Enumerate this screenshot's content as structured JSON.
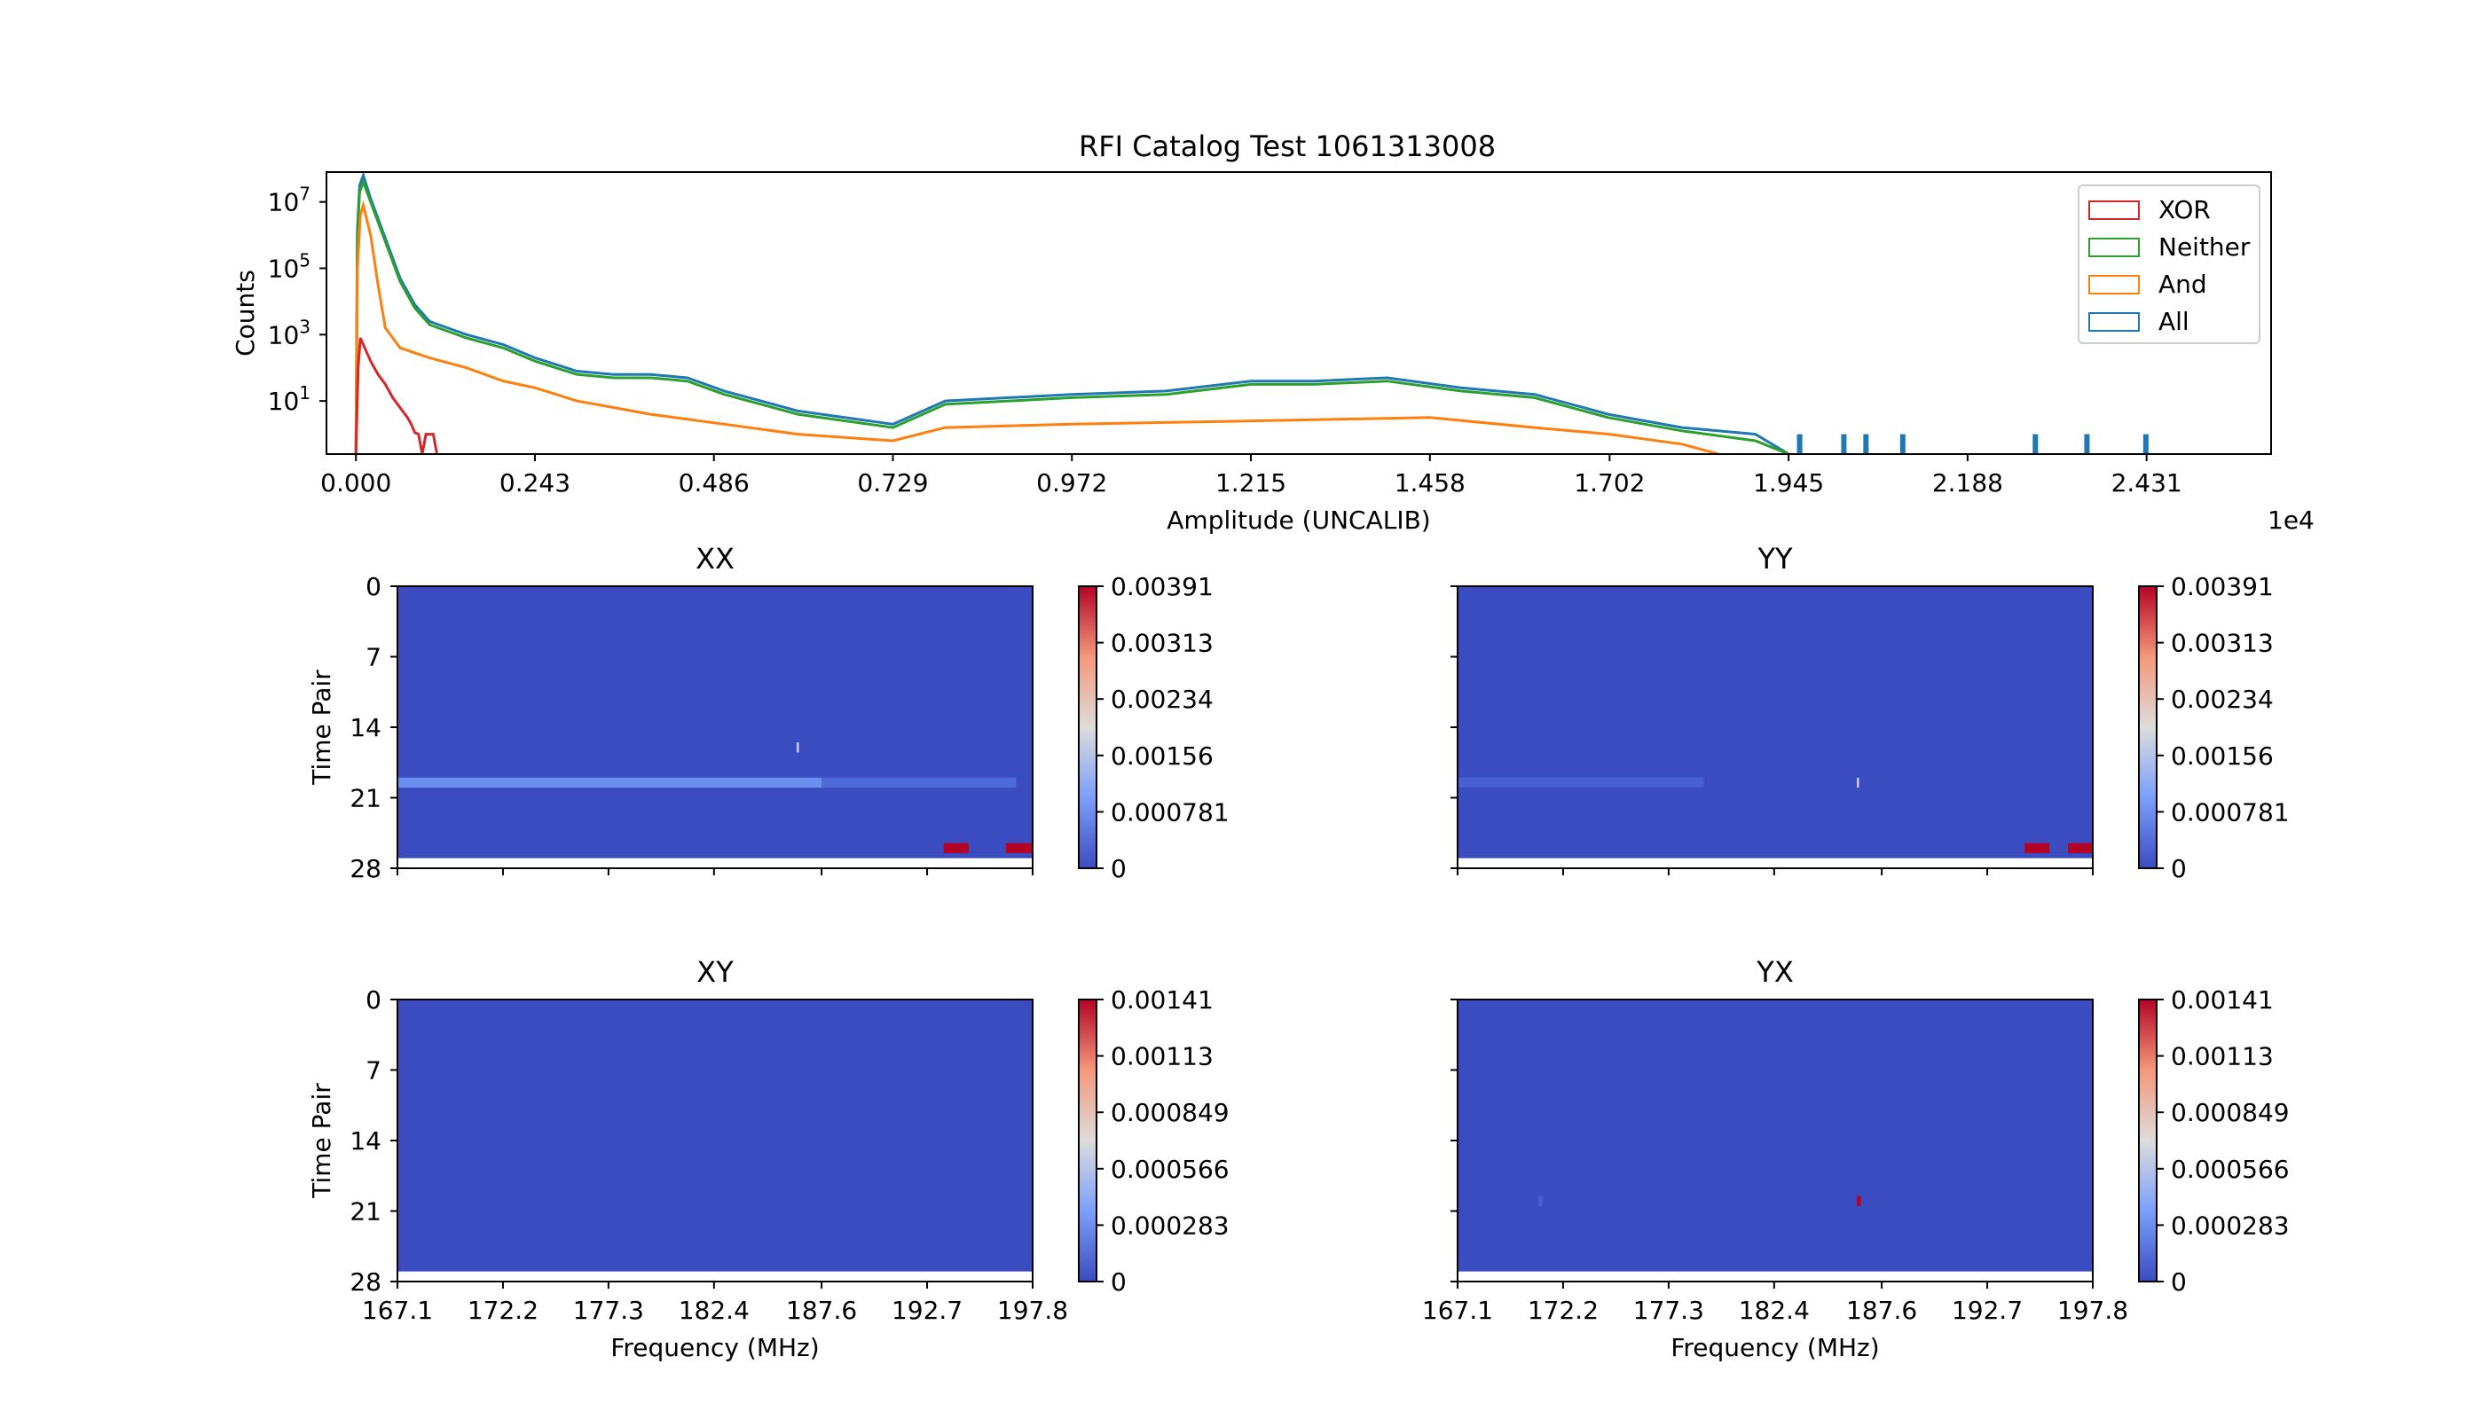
{
  "figure": {
    "title": "RFI Catalog Test 1061313008"
  },
  "chart_data": [
    {
      "type": "histogram",
      "title": "RFI Catalog Test 1061313008",
      "xlabel": "Amplitude (UNCALIB)",
      "ylabel": "Counts",
      "x_offset_label": "1e4",
      "x_scale_note": "×1e4",
      "xlim": [
        -0.04,
        2.6
      ],
      "xticks": [
        "0.000",
        "0.243",
        "0.486",
        "0.729",
        "0.972",
        "1.215",
        "1.458",
        "1.702",
        "1.945",
        "2.188",
        "2.431"
      ],
      "xtick_values": [
        0,
        0.243,
        0.486,
        0.729,
        0.972,
        1.215,
        1.458,
        1.702,
        1.945,
        2.188,
        2.431
      ],
      "yscale": "log",
      "ylim_log10": [
        -0.6,
        7.9
      ],
      "yticks": [
        {
          "base": "10",
          "exp": "7",
          "value": 7
        },
        {
          "base": "10",
          "exp": "5",
          "value": 5
        },
        {
          "base": "10",
          "exp": "3",
          "value": 3
        },
        {
          "base": "10",
          "exp": "1",
          "value": 1
        }
      ],
      "legend_position": "top-right",
      "series": [
        {
          "name": "XOR",
          "color": "#d62728",
          "points_log10": [
            [
              0.0,
              -0.6
            ],
            [
              0.003,
              2.0
            ],
            [
              0.006,
              2.9
            ],
            [
              0.012,
              2.6
            ],
            [
              0.02,
              2.2
            ],
            [
              0.03,
              1.8
            ],
            [
              0.04,
              1.5
            ],
            [
              0.05,
              1.1
            ],
            [
              0.06,
              0.8
            ],
            [
              0.07,
              0.5
            ],
            [
              0.075,
              0.3
            ],
            [
              0.08,
              0.05
            ],
            [
              0.085,
              0.0
            ],
            [
              0.09,
              -0.6
            ],
            [
              0.095,
              0.0
            ],
            [
              0.105,
              0.0
            ],
            [
              0.11,
              -0.6
            ]
          ]
        },
        {
          "name": "Neither",
          "color": "#2ca02c",
          "points_log10": [
            [
              0.0,
              -0.6
            ],
            [
              0.002,
              6.0
            ],
            [
              0.005,
              7.3
            ],
            [
              0.01,
              7.6
            ],
            [
              0.02,
              7.0
            ],
            [
              0.04,
              5.8
            ],
            [
              0.06,
              4.6
            ],
            [
              0.08,
              3.8
            ],
            [
              0.1,
              3.3
            ],
            [
              0.15,
              2.9
            ],
            [
              0.2,
              2.6
            ],
            [
              0.243,
              2.2
            ],
            [
              0.3,
              1.8
            ],
            [
              0.35,
              1.7
            ],
            [
              0.4,
              1.7
            ],
            [
              0.45,
              1.6
            ],
            [
              0.5,
              1.2
            ],
            [
              0.6,
              0.6
            ],
            [
              0.729,
              0.2
            ],
            [
              0.8,
              0.9
            ],
            [
              0.972,
              1.1
            ],
            [
              1.1,
              1.2
            ],
            [
              1.215,
              1.5
            ],
            [
              1.3,
              1.5
            ],
            [
              1.4,
              1.6
            ],
            [
              1.5,
              1.3
            ],
            [
              1.6,
              1.1
            ],
            [
              1.7,
              0.5
            ],
            [
              1.8,
              0.1
            ],
            [
              1.9,
              -0.2
            ],
            [
              1.945,
              -0.6
            ]
          ]
        },
        {
          "name": "And",
          "color": "#ff7f0e",
          "points_log10": [
            [
              0.0,
              -0.6
            ],
            [
              0.002,
              5.0
            ],
            [
              0.006,
              6.6
            ],
            [
              0.01,
              6.9
            ],
            [
              0.02,
              6.0
            ],
            [
              0.03,
              4.5
            ],
            [
              0.04,
              3.2
            ],
            [
              0.06,
              2.6
            ],
            [
              0.1,
              2.3
            ],
            [
              0.15,
              2.0
            ],
            [
              0.2,
              1.6
            ],
            [
              0.243,
              1.4
            ],
            [
              0.3,
              1.0
            ],
            [
              0.4,
              0.6
            ],
            [
              0.5,
              0.3
            ],
            [
              0.6,
              0.0
            ],
            [
              0.729,
              -0.2
            ],
            [
              0.8,
              0.2
            ],
            [
              0.972,
              0.3
            ],
            [
              1.215,
              0.4
            ],
            [
              1.458,
              0.5
            ],
            [
              1.6,
              0.2
            ],
            [
              1.702,
              0.0
            ],
            [
              1.8,
              -0.3
            ],
            [
              1.85,
              -0.6
            ]
          ]
        },
        {
          "name": "All",
          "color": "#1f77b4",
          "points_log10": [
            [
              0.0,
              -0.6
            ],
            [
              0.002,
              6.2
            ],
            [
              0.005,
              7.5
            ],
            [
              0.01,
              7.8
            ],
            [
              0.02,
              7.1
            ],
            [
              0.04,
              5.9
            ],
            [
              0.06,
              4.7
            ],
            [
              0.08,
              3.9
            ],
            [
              0.1,
              3.4
            ],
            [
              0.15,
              3.0
            ],
            [
              0.2,
              2.7
            ],
            [
              0.243,
              2.3
            ],
            [
              0.3,
              1.9
            ],
            [
              0.35,
              1.8
            ],
            [
              0.4,
              1.8
            ],
            [
              0.45,
              1.7
            ],
            [
              0.5,
              1.3
            ],
            [
              0.6,
              0.7
            ],
            [
              0.729,
              0.3
            ],
            [
              0.8,
              1.0
            ],
            [
              0.972,
              1.2
            ],
            [
              1.1,
              1.3
            ],
            [
              1.215,
              1.6
            ],
            [
              1.3,
              1.6
            ],
            [
              1.4,
              1.7
            ],
            [
              1.5,
              1.4
            ],
            [
              1.6,
              1.2
            ],
            [
              1.7,
              0.6
            ],
            [
              1.8,
              0.2
            ],
            [
              1.9,
              0.0
            ],
            [
              1.945,
              -0.6
            ]
          ]
        }
      ],
      "sparse_ticks": [
        1.96,
        2.02,
        2.05,
        2.1,
        2.28,
        2.35,
        2.43
      ],
      "sparse_tick_level_log10": 0.0
    },
    {
      "type": "heatmap",
      "title": "XX",
      "xlabel": "",
      "ylabel": "Time Pair",
      "yticks": [
        "0",
        "7",
        "14",
        "21",
        "28"
      ],
      "ytick_values": [
        0,
        7,
        14,
        21,
        28
      ],
      "ylim": [
        0,
        28
      ],
      "xticks": [
        "",
        "",
        "",
        "",
        "",
        "",
        ""
      ],
      "xlim": [
        167.1,
        197.8
      ],
      "xtick_values": [
        167.1,
        172.2,
        177.3,
        182.4,
        187.6,
        192.7,
        197.8
      ],
      "colorbar": {
        "ticks": [
          "0.00391",
          "0.00313",
          "0.00234",
          "0.00156",
          "0.000781",
          "0"
        ],
        "max": 0.00391
      },
      "background_color": "#3b4cc0",
      "hot_spots": [
        {
          "time": 19.5,
          "freq_start": 167.1,
          "freq_end": 187.6,
          "value": 0.0008,
          "color": "#6b8ff0"
        },
        {
          "time": 19.5,
          "freq_start": 187.6,
          "freq_end": 197.0,
          "value": 0.0003,
          "color": "#4f69d9"
        },
        {
          "time": 16,
          "freq_start": 186.4,
          "freq_end": 186.5,
          "value": 0.0015,
          "color": "#cdd9ec"
        },
        {
          "time": 26,
          "freq_start": 193.5,
          "freq_end": 194.7,
          "value": 0.00391,
          "color": "#b40426"
        },
        {
          "time": 26,
          "freq_start": 196.5,
          "freq_end": 197.8,
          "value": 0.00391,
          "color": "#b40426"
        }
      ],
      "data_rows": 27
    },
    {
      "type": "heatmap",
      "title": "YY",
      "xlabel": "",
      "ylabel": "",
      "yticks": [
        "",
        "",
        "",
        "",
        ""
      ],
      "ytick_values": [
        0,
        7,
        14,
        21,
        28
      ],
      "ylim": [
        0,
        28
      ],
      "xticks": [
        "",
        "",
        "",
        "",
        "",
        "",
        ""
      ],
      "xlim": [
        167.1,
        197.8
      ],
      "xtick_values": [
        167.1,
        172.2,
        177.3,
        182.4,
        187.6,
        192.7,
        197.8
      ],
      "colorbar": {
        "ticks": [
          "0.00391",
          "0.00313",
          "0.00234",
          "0.00156",
          "0.000781",
          "0"
        ],
        "max": 0.00391
      },
      "background_color": "#3b4cc0",
      "hot_spots": [
        {
          "time": 19.5,
          "freq_start": 167.1,
          "freq_end": 179.0,
          "value": 0.0002,
          "color": "#4a5fd3"
        },
        {
          "time": 19.5,
          "freq_start": 186.4,
          "freq_end": 186.5,
          "value": 0.0015,
          "color": "#cdd9ec"
        },
        {
          "time": 26,
          "freq_start": 194.5,
          "freq_end": 195.7,
          "value": 0.00391,
          "color": "#b40426"
        },
        {
          "time": 26,
          "freq_start": 196.6,
          "freq_end": 197.8,
          "value": 0.00391,
          "color": "#b40426"
        }
      ],
      "data_rows": 27
    },
    {
      "type": "heatmap",
      "title": "XY",
      "xlabel": "Frequency (MHz)",
      "ylabel": "Time Pair",
      "yticks": [
        "0",
        "7",
        "14",
        "21",
        "28"
      ],
      "ytick_values": [
        0,
        7,
        14,
        21,
        28
      ],
      "ylim": [
        0,
        28
      ],
      "xticks": [
        "167.1",
        "172.2",
        "177.3",
        "182.4",
        "187.6",
        "192.7",
        "197.8"
      ],
      "xlim": [
        167.1,
        197.8
      ],
      "xtick_values": [
        167.1,
        172.2,
        177.3,
        182.4,
        187.6,
        192.7,
        197.8
      ],
      "colorbar": {
        "ticks": [
          "0.00141",
          "0.00113",
          "0.000849",
          "0.000566",
          "0.000283",
          "0"
        ],
        "max": 0.00141
      },
      "background_color": "#3b4cc0",
      "hot_spots": [],
      "data_rows": 27
    },
    {
      "type": "heatmap",
      "title": "YX",
      "xlabel": "Frequency (MHz)",
      "ylabel": "",
      "yticks": [
        "",
        "",
        "",
        "",
        ""
      ],
      "ytick_values": [
        0,
        7,
        14,
        21,
        28
      ],
      "ylim": [
        0,
        28
      ],
      "xticks": [
        "167.1",
        "172.2",
        "177.3",
        "182.4",
        "187.6",
        "192.7",
        "197.8"
      ],
      "xlim": [
        167.1,
        197.8
      ],
      "xtick_values": [
        167.1,
        172.2,
        177.3,
        182.4,
        187.6,
        192.7,
        197.8
      ],
      "colorbar": {
        "ticks": [
          "0.00141",
          "0.00113",
          "0.000849",
          "0.000566",
          "0.000283",
          "0"
        ],
        "max": 0.00141
      },
      "background_color": "#3b4cc0",
      "hot_spots": [
        {
          "time": 20,
          "freq_start": 186.4,
          "freq_end": 186.6,
          "value": 0.00141,
          "color": "#b40426"
        },
        {
          "time": 20,
          "freq_start": 171.0,
          "freq_end": 171.2,
          "value": 0.0002,
          "color": "#4a5fd3"
        }
      ],
      "data_rows": 27
    }
  ]
}
